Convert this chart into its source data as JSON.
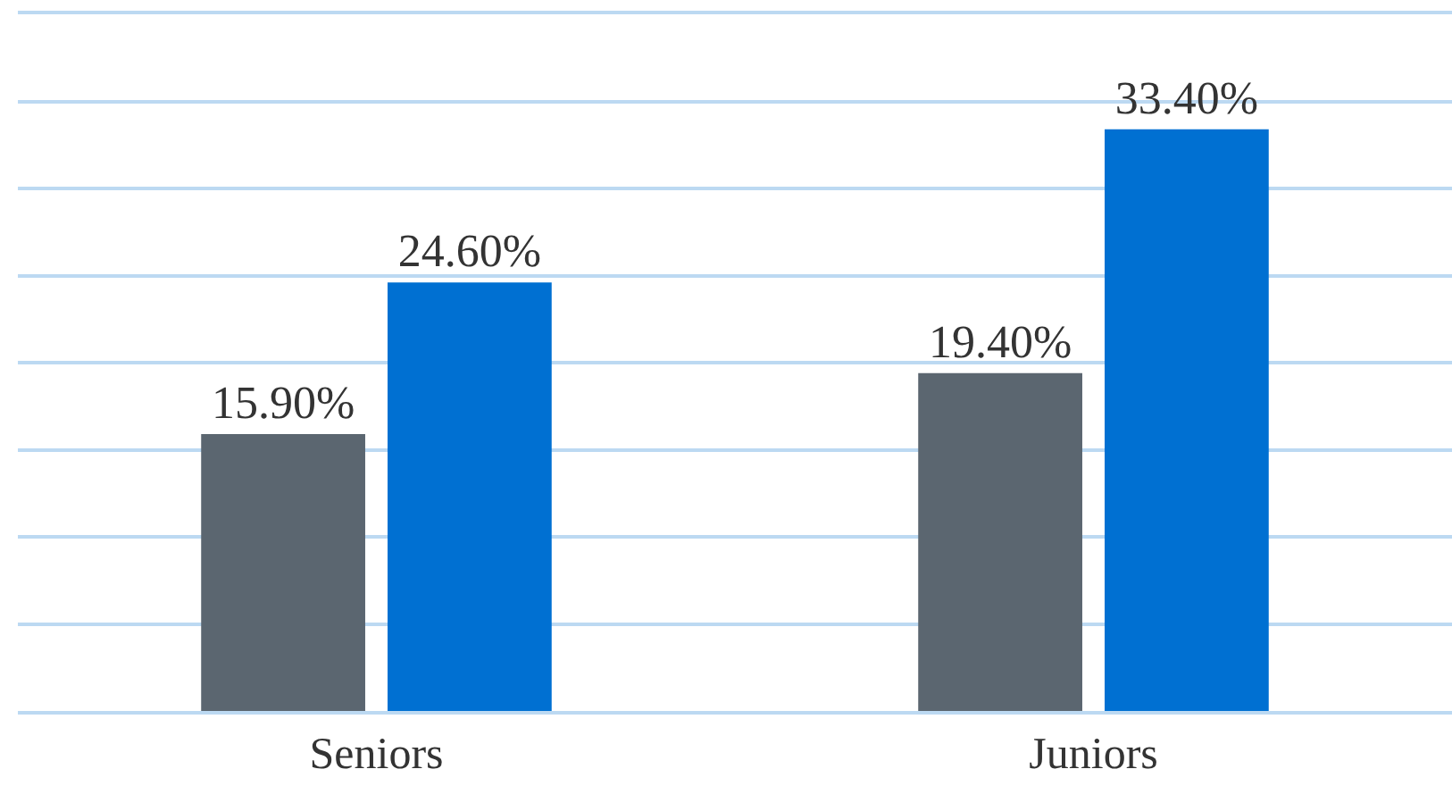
{
  "chart_data": {
    "type": "bar",
    "categories": [
      "Seniors",
      "Juniors"
    ],
    "series": [
      {
        "color": "#5b6670",
        "values": [
          15.9,
          19.4
        ],
        "value_labels": [
          "15.90%",
          "19.40%"
        ]
      },
      {
        "color": "#0070d2",
        "values": [
          24.6,
          33.4
        ],
        "value_labels": [
          "24.60%",
          "33.40%"
        ]
      }
    ],
    "ylim": [
      0,
      40
    ],
    "yticks": [
      {
        "value": 0,
        "label": null
      },
      {
        "value": 5,
        "label": null
      },
      {
        "value": 10,
        "label": null
      },
      {
        "value": 15,
        "label": null
      },
      {
        "value": 20,
        "label": null
      },
      {
        "value": 25,
        "label": null
      },
      {
        "value": 30,
        "label": null
      },
      {
        "value": 35,
        "label": null
      },
      {
        "value": 40,
        "label": null
      }
    ],
    "grid": "y",
    "tick_labels": "x",
    "legend": false
  }
}
